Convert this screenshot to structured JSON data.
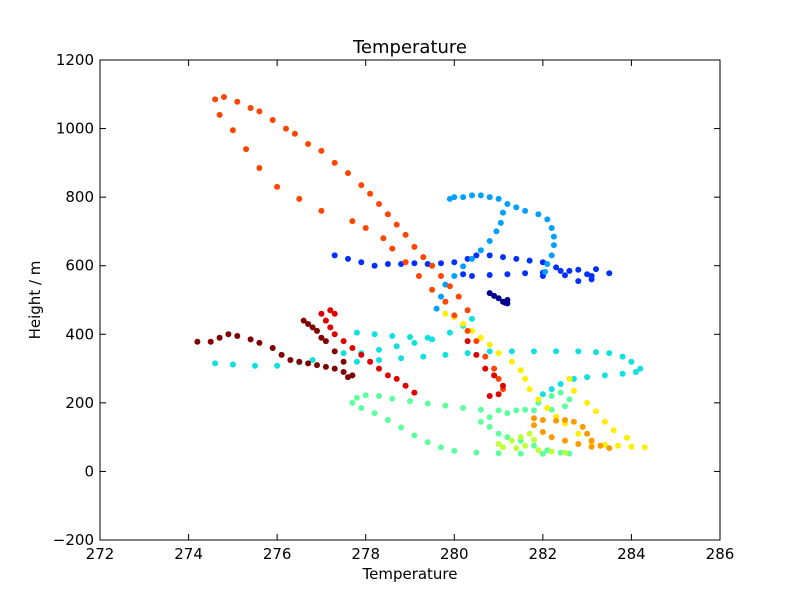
{
  "chart_data": {
    "type": "scatter",
    "title": "Temperature",
    "xlabel": "Temperature",
    "ylabel": "Height / m",
    "xlim": [
      272,
      286
    ],
    "ylim": [
      -200,
      1200
    ],
    "xticks": [
      "272",
      "274",
      "276",
      "278",
      "280",
      "282",
      "284",
      "286"
    ],
    "yticks": [
      "−200",
      "0",
      "200",
      "400",
      "600",
      "800",
      "1000",
      "1200"
    ],
    "grid": false,
    "legend": "none",
    "colormap": "jet",
    "series": [
      {
        "color": "#00008f",
        "points": [
          [
            281.2,
            490
          ],
          [
            281.1,
            495
          ],
          [
            281.0,
            505
          ],
          [
            280.9,
            512
          ],
          [
            280.8,
            520
          ],
          [
            281.2,
            500
          ],
          [
            281.15,
            492
          ]
        ]
      },
      {
        "color": "#0030ff",
        "points": [
          [
            277.3,
            630
          ],
          [
            277.6,
            620
          ],
          [
            277.9,
            610
          ],
          [
            278.2,
            600
          ],
          [
            278.5,
            605
          ],
          [
            278.8,
            605
          ],
          [
            279.1,
            607
          ],
          [
            279.4,
            605
          ],
          [
            279.7,
            607
          ],
          [
            280.0,
            610
          ],
          [
            280.3,
            620
          ],
          [
            280.5,
            630
          ],
          [
            280.8,
            630
          ],
          [
            281.1,
            625
          ],
          [
            281.4,
            620
          ],
          [
            281.7,
            615
          ],
          [
            282.0,
            610
          ],
          [
            282.3,
            595
          ],
          [
            282.6,
            585
          ],
          [
            283.0,
            575
          ],
          [
            283.5,
            578
          ],
          [
            283.2,
            590
          ],
          [
            282.8,
            588
          ],
          [
            282.4,
            585
          ],
          [
            282.0,
            580
          ],
          [
            281.6,
            578
          ],
          [
            281.2,
            575
          ],
          [
            280.8,
            573
          ],
          [
            280.4,
            570
          ],
          [
            280.2,
            575
          ],
          [
            282.0,
            570
          ],
          [
            282.5,
            572
          ],
          [
            283.1,
            570
          ],
          [
            283.1,
            560
          ],
          [
            282.8,
            555
          ]
        ]
      },
      {
        "color": "#00a0ff",
        "points": [
          [
            279.6,
            475
          ],
          [
            279.7,
            510
          ],
          [
            279.8,
            545
          ],
          [
            280.0,
            570
          ],
          [
            280.2,
            598
          ],
          [
            280.4,
            620
          ],
          [
            280.6,
            645
          ],
          [
            280.8,
            672
          ],
          [
            280.95,
            700
          ],
          [
            281.05,
            725
          ],
          [
            281.1,
            755
          ],
          [
            281.2,
            780
          ],
          [
            281.0,
            795
          ],
          [
            280.8,
            800
          ],
          [
            280.6,
            805
          ],
          [
            280.4,
            805
          ],
          [
            280.2,
            800
          ],
          [
            280.0,
            800
          ],
          [
            279.9,
            795
          ],
          [
            281.4,
            770
          ],
          [
            281.6,
            760
          ],
          [
            281.9,
            750
          ],
          [
            282.1,
            735
          ],
          [
            282.2,
            710
          ],
          [
            282.25,
            685
          ],
          [
            282.25,
            660
          ],
          [
            282.2,
            630
          ],
          [
            282.1,
            605
          ],
          [
            282.05,
            582
          ]
        ]
      },
      {
        "color": "#10e0e0",
        "points": [
          [
            274.6,
            315
          ],
          [
            275.0,
            312
          ],
          [
            275.5,
            308
          ],
          [
            276.0,
            308
          ],
          [
            276.5,
            318
          ],
          [
            276.8,
            325
          ],
          [
            277.8,
            320
          ],
          [
            278.3,
            325
          ],
          [
            278.8,
            330
          ],
          [
            279.3,
            335
          ],
          [
            279.8,
            340
          ],
          [
            280.3,
            345
          ],
          [
            280.8,
            350
          ],
          [
            281.3,
            350
          ],
          [
            281.8,
            350
          ],
          [
            282.3,
            350
          ],
          [
            282.8,
            350
          ],
          [
            283.2,
            348
          ],
          [
            283.5,
            345
          ],
          [
            283.8,
            335
          ],
          [
            284.0,
            320
          ],
          [
            284.2,
            300
          ],
          [
            284.1,
            290
          ],
          [
            283.8,
            285
          ],
          [
            283.4,
            280
          ],
          [
            283.0,
            275
          ],
          [
            282.7,
            270
          ],
          [
            282.4,
            255
          ],
          [
            282.2,
            240
          ],
          [
            282.0,
            225
          ],
          [
            277.5,
            345
          ],
          [
            277.9,
            345
          ],
          [
            278.3,
            355
          ],
          [
            278.7,
            365
          ],
          [
            279.1,
            375
          ],
          [
            279.5,
            385
          ],
          [
            279.9,
            405
          ],
          [
            280.2,
            425
          ],
          [
            280.4,
            445
          ],
          [
            277.8,
            405
          ],
          [
            278.2,
            400
          ],
          [
            278.6,
            395
          ],
          [
            279.0,
            392
          ],
          [
            279.4,
            390
          ]
        ]
      },
      {
        "color": "#5eff9f",
        "points": [
          [
            277.7,
            200
          ],
          [
            277.8,
            215
          ],
          [
            278.0,
            222
          ],
          [
            278.3,
            220
          ],
          [
            278.6,
            212
          ],
          [
            279.0,
            205
          ],
          [
            279.4,
            198
          ],
          [
            279.8,
            192
          ],
          [
            280.2,
            185
          ],
          [
            280.6,
            180
          ],
          [
            281.0,
            178
          ],
          [
            281.4,
            178
          ],
          [
            281.8,
            178
          ],
          [
            282.2,
            180
          ],
          [
            282.5,
            190
          ],
          [
            282.6,
            210
          ],
          [
            282.4,
            230
          ],
          [
            282.2,
            220
          ],
          [
            281.9,
            200
          ],
          [
            281.6,
            180
          ],
          [
            281.2,
            170
          ],
          [
            280.8,
            158
          ],
          [
            280.6,
            145
          ],
          [
            280.8,
            130
          ],
          [
            281.0,
            110
          ],
          [
            281.2,
            100
          ],
          [
            281.5,
            90
          ],
          [
            281.8,
            75
          ],
          [
            282.1,
            62
          ],
          [
            282.4,
            55
          ],
          [
            282.6,
            52
          ],
          [
            277.9,
            185
          ],
          [
            278.2,
            170
          ],
          [
            278.5,
            150
          ],
          [
            278.8,
            128
          ],
          [
            279.1,
            105
          ],
          [
            279.4,
            85
          ],
          [
            279.7,
            70
          ],
          [
            280.0,
            60
          ],
          [
            280.5,
            55
          ],
          [
            281.0,
            53
          ],
          [
            281.5,
            52
          ],
          [
            282.0,
            51
          ]
        ]
      },
      {
        "color": "#c0ff3a",
        "points": [
          [
            281.0,
            80
          ],
          [
            281.3,
            90
          ],
          [
            281.5,
            100
          ],
          [
            281.7,
            110
          ],
          [
            281.8,
            92
          ],
          [
            281.6,
            75
          ],
          [
            281.9,
            62
          ],
          [
            282.2,
            58
          ],
          [
            282.5,
            55
          ],
          [
            281.1,
            70
          ],
          [
            281.4,
            68
          ]
        ]
      },
      {
        "color": "#ffee00",
        "points": [
          [
            279.8,
            460
          ],
          [
            280.0,
            450
          ],
          [
            280.2,
            430
          ],
          [
            280.4,
            410
          ],
          [
            280.6,
            390
          ],
          [
            280.8,
            370
          ],
          [
            281.0,
            345
          ],
          [
            281.3,
            320
          ],
          [
            281.5,
            295
          ],
          [
            281.6,
            270
          ],
          [
            281.7,
            240
          ],
          [
            281.9,
            210
          ],
          [
            282.1,
            185
          ],
          [
            282.3,
            160
          ],
          [
            282.5,
            140
          ],
          [
            282.8,
            110
          ],
          [
            283.1,
            85
          ],
          [
            283.4,
            78
          ],
          [
            283.7,
            75
          ],
          [
            284.0,
            72
          ],
          [
            284.3,
            70
          ],
          [
            282.6,
            270
          ],
          [
            282.7,
            235
          ],
          [
            283.0,
            200
          ],
          [
            283.2,
            175
          ],
          [
            283.4,
            145
          ],
          [
            283.6,
            120
          ],
          [
            283.9,
            98
          ]
        ]
      },
      {
        "color": "#ff9900",
        "points": [
          [
            281.8,
            155
          ],
          [
            282.0,
            150
          ],
          [
            282.3,
            148
          ],
          [
            282.5,
            150
          ],
          [
            282.7,
            145
          ],
          [
            282.9,
            130
          ],
          [
            283.0,
            110
          ],
          [
            283.1,
            90
          ],
          [
            283.3,
            75
          ],
          [
            283.5,
            68
          ],
          [
            283.1,
            72
          ],
          [
            282.8,
            80
          ],
          [
            282.5,
            90
          ],
          [
            282.2,
            100
          ],
          [
            282.0,
            115
          ],
          [
            281.8,
            135
          ]
        ]
      },
      {
        "color": "#ff4500",
        "points": [
          [
            274.6,
            1085
          ],
          [
            274.8,
            1092
          ],
          [
            275.1,
            1078
          ],
          [
            275.4,
            1060
          ],
          [
            275.6,
            1050
          ],
          [
            275.9,
            1025
          ],
          [
            276.2,
            1000
          ],
          [
            276.4,
            985
          ],
          [
            276.7,
            955
          ],
          [
            277.0,
            935
          ],
          [
            277.3,
            900
          ],
          [
            277.6,
            870
          ],
          [
            277.9,
            835
          ],
          [
            278.1,
            810
          ],
          [
            278.3,
            780
          ],
          [
            278.5,
            750
          ],
          [
            278.7,
            720
          ],
          [
            278.9,
            690
          ],
          [
            279.1,
            655
          ],
          [
            279.3,
            625
          ],
          [
            279.5,
            600
          ],
          [
            279.7,
            570
          ],
          [
            279.9,
            540
          ],
          [
            280.1,
            510
          ],
          [
            280.3,
            470
          ],
          [
            274.7,
            1040
          ],
          [
            275.0,
            995
          ],
          [
            275.3,
            940
          ],
          [
            275.6,
            885
          ],
          [
            276.0,
            830
          ],
          [
            276.5,
            795
          ],
          [
            277.0,
            760
          ],
          [
            277.7,
            730
          ],
          [
            278.0,
            710
          ],
          [
            278.4,
            680
          ],
          [
            278.6,
            650
          ],
          [
            278.9,
            610
          ],
          [
            279.2,
            570
          ],
          [
            279.5,
            530
          ],
          [
            279.8,
            495
          ],
          [
            280.0,
            455
          ],
          [
            280.3,
            410
          ],
          [
            280.5,
            380
          ],
          [
            280.7,
            335
          ],
          [
            280.9,
            300
          ],
          [
            281.0,
            270
          ],
          [
            281.1,
            240
          ]
        ]
      },
      {
        "color": "#e00000",
        "points": [
          [
            277.0,
            460
          ],
          [
            277.2,
            470
          ],
          [
            277.3,
            460
          ],
          [
            277.1,
            440
          ],
          [
            277.2,
            420
          ],
          [
            277.3,
            400
          ],
          [
            277.5,
            380
          ],
          [
            277.7,
            360
          ],
          [
            277.9,
            340
          ],
          [
            278.1,
            320
          ],
          [
            278.3,
            300
          ],
          [
            278.5,
            280
          ],
          [
            278.7,
            270
          ],
          [
            278.9,
            250
          ],
          [
            279.1,
            230
          ],
          [
            280.8,
            220
          ],
          [
            281.0,
            225
          ],
          [
            281.1,
            250
          ],
          [
            280.9,
            280
          ],
          [
            280.7,
            300
          ],
          [
            280.5,
            340
          ],
          [
            280.3,
            380
          ]
        ]
      },
      {
        "color": "#800000",
        "points": [
          [
            274.2,
            378
          ],
          [
            274.5,
            378
          ],
          [
            274.7,
            390
          ],
          [
            274.9,
            400
          ],
          [
            275.1,
            395
          ],
          [
            275.4,
            385
          ],
          [
            275.6,
            375
          ],
          [
            275.9,
            360
          ],
          [
            276.1,
            340
          ],
          [
            276.3,
            325
          ],
          [
            276.5,
            320
          ],
          [
            276.7,
            315
          ],
          [
            276.9,
            310
          ],
          [
            277.1,
            305
          ],
          [
            277.3,
            300
          ],
          [
            277.5,
            290
          ],
          [
            277.6,
            275
          ],
          [
            277.7,
            280
          ],
          [
            277.5,
            320
          ],
          [
            277.3,
            350
          ],
          [
            277.1,
            380
          ],
          [
            276.9,
            410
          ],
          [
            276.7,
            430
          ],
          [
            276.6,
            440
          ],
          [
            276.8,
            420
          ],
          [
            277.0,
            390
          ]
        ]
      }
    ]
  }
}
